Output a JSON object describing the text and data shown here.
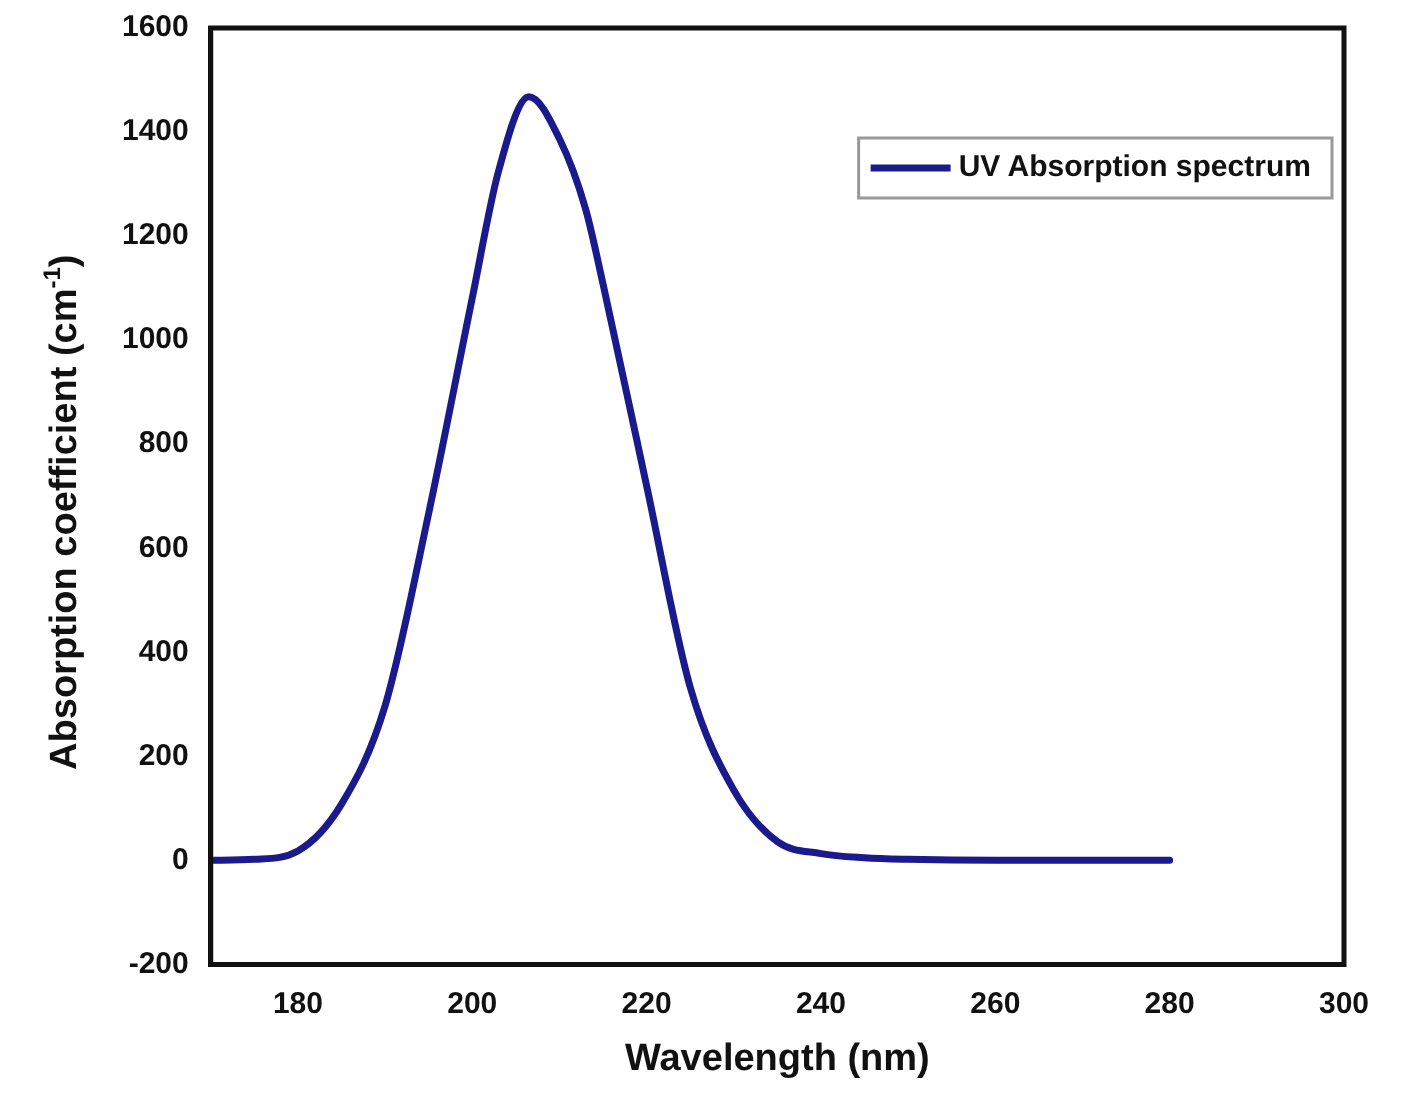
{
  "chart_data": {
    "type": "line",
    "xlabel": "Wavelength (nm)",
    "ylabel": "Absorption coefficient (cm$^{-1}$)",
    "x": [
      170,
      175,
      180,
      185,
      190,
      195,
      200,
      203,
      206.5,
      210,
      213,
      215,
      220,
      225,
      230,
      235,
      240,
      245,
      250,
      260,
      270,
      280
    ],
    "series": [
      {
        "name": "UV Absorption spectrum",
        "color": "#1a1a8c",
        "values": [
          0,
          2,
          18,
          108,
          297,
          667,
          1081,
          1324,
          1468,
          1387,
          1252,
          1108,
          720,
          333,
          135,
          36,
          13,
          5,
          2,
          0,
          0,
          0
        ]
      }
    ],
    "xlim": [
      170,
      300
    ],
    "xticks": [
      180,
      200,
      220,
      240,
      260,
      280,
      300
    ],
    "ylim": [
      -200,
      1600
    ],
    "yticks": [
      -200,
      0,
      200,
      400,
      600,
      800,
      1000,
      1200,
      1400,
      1600
    ],
    "grid": false,
    "legend": "top right",
    "marker": "none",
    "line_style": "solid"
  }
}
